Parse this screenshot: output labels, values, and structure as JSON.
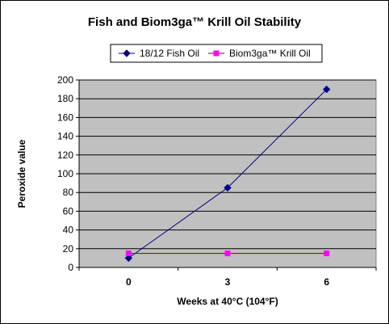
{
  "chart_data": {
    "type": "line",
    "title": "Fish and Biom3ga™ Krill Oil Stability",
    "xlabel": "Weeks at 40°C (104°F)",
    "ylabel": "Peroxide value",
    "categories": [
      "0",
      "3",
      "6"
    ],
    "ylim": [
      0,
      200
    ],
    "yticks": [
      0,
      20,
      40,
      60,
      80,
      100,
      120,
      140,
      160,
      180,
      200
    ],
    "grid": true,
    "legend_position": "top",
    "plot_background": "#c0c0c0",
    "series": [
      {
        "name": "18/12 Fish Oil",
        "values": [
          10,
          85,
          190
        ],
        "color": "#000080",
        "marker": "diamond"
      },
      {
        "name": "Biom3ga™ Krill Oil",
        "values": [
          15,
          15,
          15
        ],
        "color": "#800000",
        "marker_color": "#ff00ff",
        "marker": "square"
      }
    ]
  }
}
